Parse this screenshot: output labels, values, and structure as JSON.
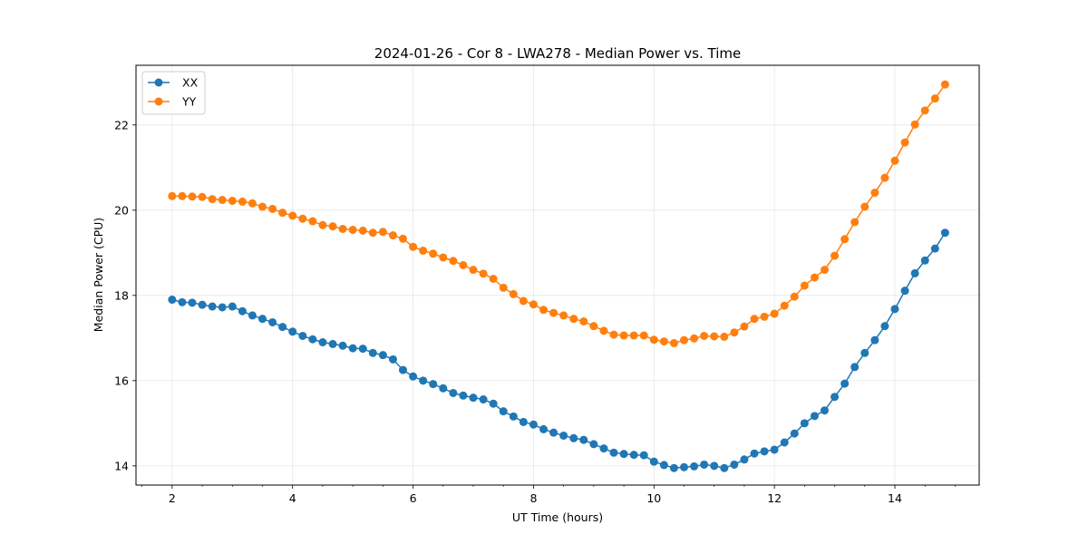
{
  "chart_data": {
    "type": "line",
    "title": "2024-01-26 - Cor 8 - LWA278 - Median Power vs. Time",
    "xlabel": "UT Time (hours)",
    "ylabel": "Median Power (CPU)",
    "xlim": [
      1.4,
      15.4
    ],
    "ylim": [
      13.55,
      23.4
    ],
    "x_ticks": [
      2,
      4,
      6,
      8,
      10,
      12,
      14
    ],
    "x_tick_labels": [
      "2",
      "4",
      "6",
      "8",
      "10",
      "12",
      "14"
    ],
    "y_ticks": [
      14,
      16,
      18,
      20,
      22
    ],
    "y_tick_labels": [
      "14",
      "16",
      "18",
      "20",
      "22"
    ],
    "grid": true,
    "legend_position": "top-left",
    "x": [
      2.0,
      2.167,
      2.333,
      2.5,
      2.667,
      2.833,
      3.0,
      3.167,
      3.333,
      3.5,
      3.667,
      3.833,
      4.0,
      4.167,
      4.333,
      4.5,
      4.667,
      4.833,
      5.0,
      5.167,
      5.333,
      5.5,
      5.667,
      5.833,
      6.0,
      6.167,
      6.333,
      6.5,
      6.667,
      6.833,
      7.0,
      7.167,
      7.333,
      7.5,
      7.667,
      7.833,
      8.0,
      8.167,
      8.333,
      8.5,
      8.667,
      8.833,
      9.0,
      9.167,
      9.333,
      9.5,
      9.667,
      9.833,
      10.0,
      10.167,
      10.333,
      10.5,
      10.667,
      10.833,
      11.0,
      11.167,
      11.333,
      11.5,
      11.667,
      11.833,
      12.0,
      12.167,
      12.333,
      12.5,
      12.667,
      12.833,
      13.0,
      13.167,
      13.333,
      13.5,
      13.667,
      13.833,
      14.0,
      14.167,
      14.333,
      14.5,
      14.667,
      14.833
    ],
    "series": [
      {
        "name": "XX",
        "color": "#1f77b4",
        "values": [
          17.9,
          17.84,
          17.83,
          17.78,
          17.74,
          17.72,
          17.74,
          17.63,
          17.53,
          17.45,
          17.37,
          17.26,
          17.15,
          17.05,
          16.97,
          16.9,
          16.86,
          16.82,
          16.76,
          16.75,
          16.65,
          16.6,
          16.5,
          16.25,
          16.1,
          16.0,
          15.92,
          15.82,
          15.71,
          15.65,
          15.6,
          15.56,
          15.46,
          15.28,
          15.16,
          15.03,
          14.97,
          14.86,
          14.78,
          14.71,
          14.65,
          14.61,
          14.51,
          14.41,
          14.31,
          14.28,
          14.26,
          14.25,
          14.1,
          14.02,
          13.95,
          13.97,
          13.99,
          14.03,
          14.0,
          13.95,
          14.03,
          14.15,
          14.29,
          14.34,
          14.38,
          14.55,
          14.76,
          15.0,
          15.17,
          15.3,
          15.62,
          15.93,
          16.32,
          16.65,
          16.95,
          17.28,
          17.68,
          18.11,
          18.52,
          18.82,
          19.1,
          19.47
        ]
      },
      {
        "name": "YY",
        "color": "#ff7f0e",
        "values": [
          20.33,
          20.33,
          20.32,
          20.31,
          20.26,
          20.24,
          20.22,
          20.2,
          20.16,
          20.08,
          20.03,
          19.94,
          19.87,
          19.8,
          19.74,
          19.65,
          19.62,
          19.56,
          19.54,
          19.52,
          19.47,
          19.49,
          19.41,
          19.33,
          19.14,
          19.05,
          18.98,
          18.89,
          18.81,
          18.71,
          18.6,
          18.51,
          18.39,
          18.18,
          18.03,
          17.87,
          17.79,
          17.66,
          17.59,
          17.53,
          17.45,
          17.39,
          17.28,
          17.17,
          17.08,
          17.06,
          17.06,
          17.06,
          16.96,
          16.92,
          16.88,
          16.95,
          16.99,
          17.05,
          17.04,
          17.03,
          17.13,
          17.27,
          17.45,
          17.5,
          17.57,
          17.76,
          17.97,
          18.23,
          18.42,
          18.6,
          18.93,
          19.32,
          19.72,
          20.08,
          20.41,
          20.76,
          21.16,
          21.59,
          22.01,
          22.34,
          22.62,
          22.95
        ]
      }
    ]
  }
}
